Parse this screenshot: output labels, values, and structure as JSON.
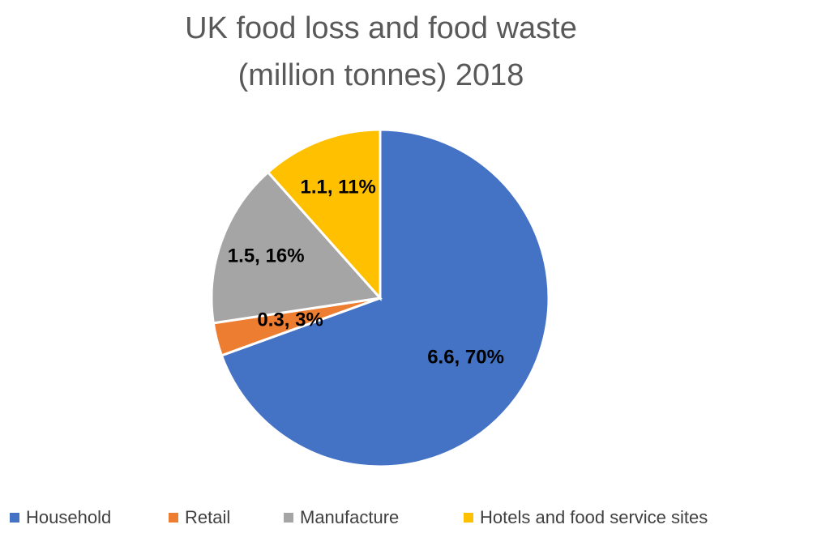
{
  "chart_data": {
    "type": "pie",
    "title_line1": "UK food loss and food waste",
    "title_line2": "(million tonnes) 2018",
    "categories": [
      "Household",
      "Retail",
      "Manufacture",
      "Hotels and food service sites"
    ],
    "values": [
      6.6,
      0.3,
      1.5,
      1.1
    ],
    "percents": [
      70,
      3,
      16,
      11
    ],
    "data_labels": [
      "6.6, 70%",
      "0.3, 3%",
      "1.5, 16%",
      "1.1, 11%"
    ],
    "colors": [
      "#4472C4",
      "#ED7D31",
      "#A5A5A5",
      "#FFC000"
    ],
    "legend_position": "bottom"
  }
}
